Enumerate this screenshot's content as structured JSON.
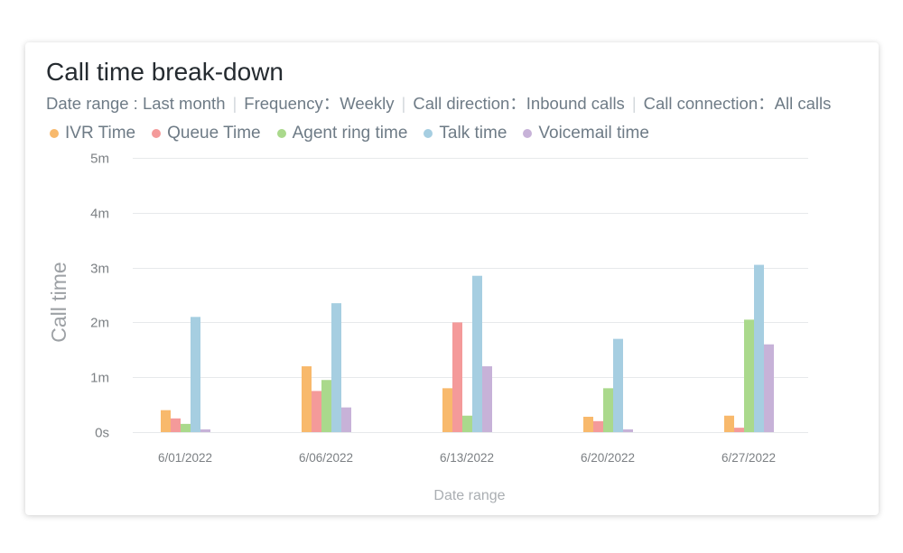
{
  "filters": {
    "items": [
      "Date range : Last month",
      "Frequency：Weekly",
      "Call direction：Inbound calls",
      "Call connection：All calls"
    ],
    "separator": "|"
  },
  "chart_data": {
    "type": "bar",
    "title": "Call time break-down",
    "xlabel": "Date range",
    "ylabel": "Call time",
    "categories": [
      "6/01/2022",
      "6/06/2022",
      "6/13/2022",
      "6/20/2022",
      "6/27/2022"
    ],
    "y_ticks": [
      "0s",
      "1m",
      "2m",
      "3m",
      "4m",
      "5m"
    ],
    "ylim": [
      0,
      5
    ],
    "grid": true,
    "legend_position": "top-left",
    "series": [
      {
        "name": "IVR Time",
        "color": "#f8b96c",
        "values": [
          0.4,
          1.2,
          0.8,
          0.28,
          0.3
        ]
      },
      {
        "name": "Queue Time",
        "color": "#f49a9a",
        "values": [
          0.25,
          0.75,
          2.0,
          0.2,
          0.08
        ]
      },
      {
        "name": "Agent ring time",
        "color": "#aad98c",
        "values": [
          0.15,
          0.95,
          0.3,
          0.8,
          2.05
        ]
      },
      {
        "name": "Talk time",
        "color": "#a6cee1",
        "values": [
          2.1,
          2.35,
          2.85,
          1.7,
          3.05
        ]
      },
      {
        "name": "Voicemail time",
        "color": "#c7b2d8",
        "values": [
          0.05,
          0.45,
          1.2,
          0.05,
          1.6
        ]
      }
    ]
  }
}
